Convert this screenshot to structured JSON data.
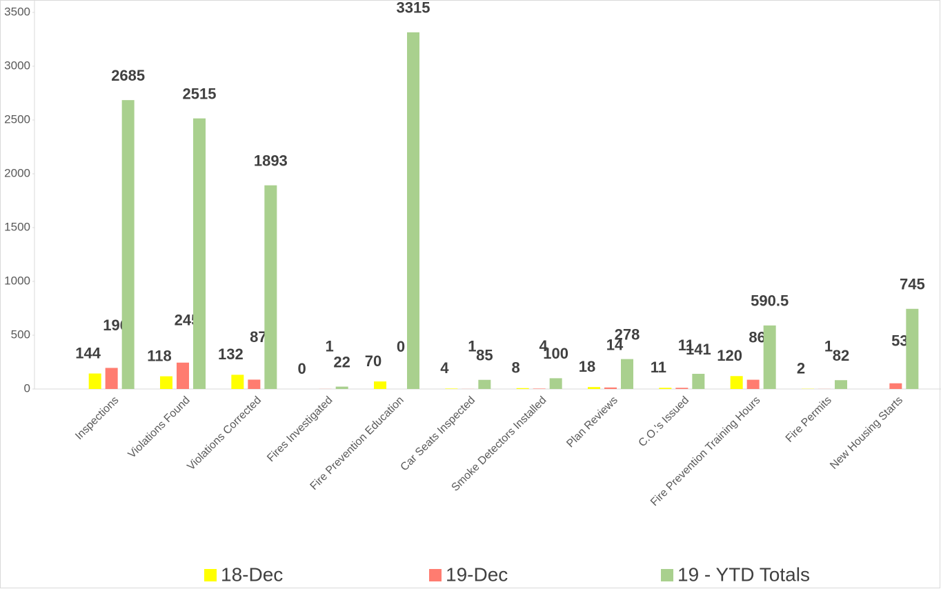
{
  "chart_data": {
    "type": "bar",
    "categories": [
      "Inspections",
      "Violations Found",
      "Violations Corrected",
      "Fires Investigated",
      "Fire Prevention Education",
      "Car Seats Inspected",
      "Smoke Detectors Installed",
      "Plan Reviews",
      "C.O.'s Issued",
      "Fire Prevention Training Hours",
      "Fire Permits",
      "New Housing Starts"
    ],
    "series": [
      {
        "name": "18-Dec",
        "color": "#ffff00",
        "values": [
          144,
          118,
          132,
          0,
          70,
          4,
          8,
          18,
          11,
          120,
          2,
          null
        ]
      },
      {
        "name": "19-Dec",
        "color": "#ff7c70",
        "values": [
          196,
          245,
          87,
          1,
          0,
          1,
          4,
          14,
          11,
          86,
          1,
          53
        ]
      },
      {
        "name": "19 - YTD Totals",
        "color": "#a9d08e",
        "values": [
          2685,
          2515,
          1893,
          22,
          3315,
          85,
          100,
          278,
          141,
          590.5,
          82,
          745
        ]
      }
    ],
    "ylim": [
      0,
      3500
    ],
    "yticks": [
      0,
      500,
      1000,
      1500,
      2000,
      2500,
      3000,
      3500
    ],
    "grid": false,
    "legend": "bottom"
  }
}
